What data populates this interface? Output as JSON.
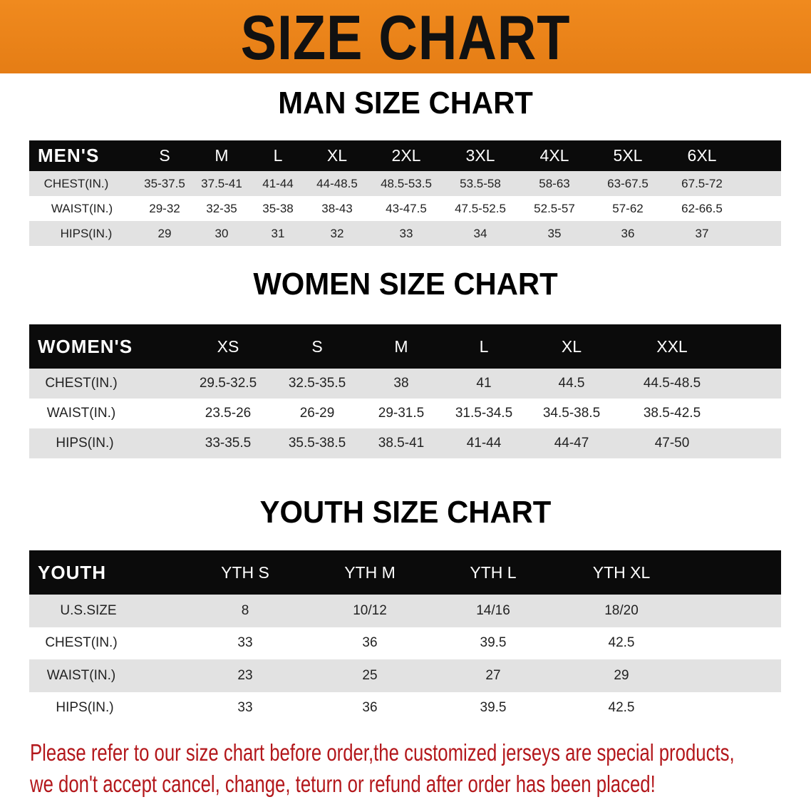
{
  "banner": {
    "title": "SIZE CHART",
    "color": "#ea821a"
  },
  "men": {
    "title": "MAN SIZE CHART",
    "header": [
      "MEN'S",
      "S",
      "M",
      "L",
      "XL",
      "2XL",
      "3XL",
      "4XL",
      "5XL",
      "6XL"
    ],
    "rows": [
      [
        "CHEST(IN.)",
        "35-37.5",
        "37.5-41",
        "41-44",
        "44-48.5",
        "48.5-53.5",
        "53.5-58",
        "58-63",
        "63-67.5",
        "67.5-72"
      ],
      [
        "WAIST(IN.)",
        "29-32",
        "32-35",
        "35-38",
        "38-43",
        "43-47.5",
        "47.5-52.5",
        "52.5-57",
        "57-62",
        "62-66.5"
      ],
      [
        "HIPS(IN.)",
        "29",
        "30",
        "31",
        "32",
        "33",
        "34",
        "35",
        "36",
        "37"
      ]
    ]
  },
  "women": {
    "title": "WOMEN SIZE CHART",
    "header": [
      "WOMEN'S",
      "XS",
      "S",
      "M",
      "L",
      "XL",
      "XXL"
    ],
    "rows": [
      [
        "CHEST(IN.)",
        "29.5-32.5",
        "32.5-35.5",
        "38",
        "41",
        "44.5",
        "44.5-48.5"
      ],
      [
        "WAIST(IN.)",
        "23.5-26",
        "26-29",
        "29-31.5",
        "31.5-34.5",
        "34.5-38.5",
        "38.5-42.5"
      ],
      [
        "HIPS(IN.)",
        "33-35.5",
        "35.5-38.5",
        "38.5-41",
        "41-44",
        "44-47",
        "47-50"
      ]
    ]
  },
  "youth": {
    "title": "YOUTH SIZE CHART",
    "header": [
      "YOUTH",
      "YTH S",
      "YTH M",
      "YTH L",
      "YTH XL"
    ],
    "rows": [
      [
        "U.S.SIZE",
        "8",
        "10/12",
        "14/16",
        "18/20"
      ],
      [
        "CHEST(IN.)",
        "33",
        "36",
        "39.5",
        "42.5"
      ],
      [
        "WAIST(IN.)",
        "23",
        "25",
        "27",
        "29"
      ],
      [
        "HIPS(IN.)",
        "33",
        "36",
        "39.5",
        "42.5"
      ]
    ]
  },
  "notice": {
    "line1": "Please refer to our size chart before order,the customized jerseys are special products,",
    "line2": "we don't accept cancel, change, teturn or refund after order has been placed!",
    "color": "#b3171b"
  }
}
